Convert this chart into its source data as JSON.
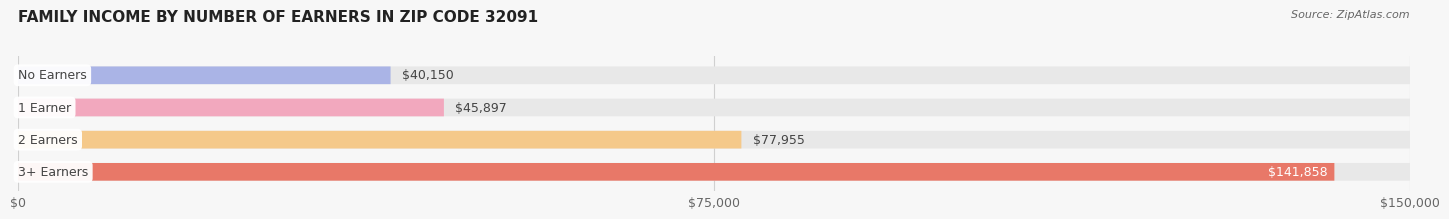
{
  "title": "FAMILY INCOME BY NUMBER OF EARNERS IN ZIP CODE 32091",
  "source": "Source: ZipAtlas.com",
  "categories": [
    "No Earners",
    "1 Earner",
    "2 Earners",
    "3+ Earners"
  ],
  "values": [
    40150,
    45897,
    77955,
    141858
  ],
  "bar_colors": [
    "#aab4e6",
    "#f2a8be",
    "#f5c98a",
    "#e87868"
  ],
  "bg_bar_color": "#e8e8e8",
  "value_labels": [
    "$40,150",
    "$45,897",
    "$77,955",
    "$141,858"
  ],
  "xmax": 150000,
  "xtick_labels": [
    "$0",
    "$75,000",
    "$150,000"
  ],
  "xtick_values": [
    0,
    75000,
    150000
  ],
  "title_fontsize": 11,
  "label_fontsize": 9,
  "value_fontsize": 9,
  "source_fontsize": 8,
  "background_color": "#f7f7f7",
  "bar_height": 0.55,
  "label_bg_color": "#ffffff",
  "gridline_color": "#d0d0d0",
  "text_color_dark": "#444444",
  "text_color_light": "#ffffff"
}
